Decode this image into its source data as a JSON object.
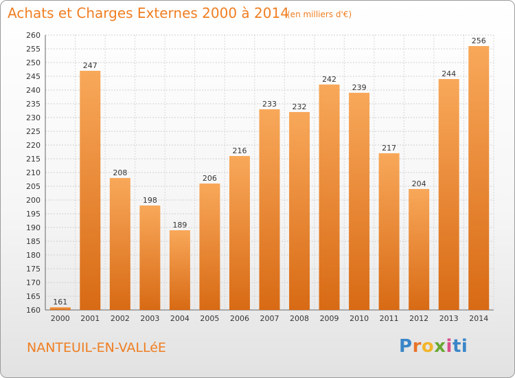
{
  "header": {
    "title": "Achats et Charges Externes 2000 à 2014",
    "unit": "(en milliers d'€)"
  },
  "footer": {
    "commune": "NANTEUIL-EN-VALLéE",
    "logo": "Proxiti"
  },
  "colors": {
    "accent": "#ef7e22",
    "bar_light": "#f8a85a",
    "bar_dark": "#d86a14"
  },
  "chart_data": {
    "type": "bar",
    "title": "Achats et Charges Externes 2000 à 2014",
    "xlabel": "",
    "ylabel": "",
    "categories": [
      "2000",
      "2001",
      "2002",
      "2003",
      "2004",
      "2005",
      "2006",
      "2007",
      "2008",
      "2009",
      "2010",
      "2011",
      "2012",
      "2013",
      "2014"
    ],
    "values": [
      161,
      247,
      208,
      198,
      189,
      206,
      216,
      233,
      232,
      242,
      239,
      217,
      204,
      244,
      256
    ],
    "ylim": [
      160,
      260
    ],
    "yticks": [
      160,
      165,
      170,
      175,
      180,
      185,
      190,
      195,
      200,
      205,
      210,
      215,
      220,
      225,
      230,
      235,
      240,
      245,
      250,
      255,
      260
    ],
    "grid": true,
    "legend": "none"
  }
}
